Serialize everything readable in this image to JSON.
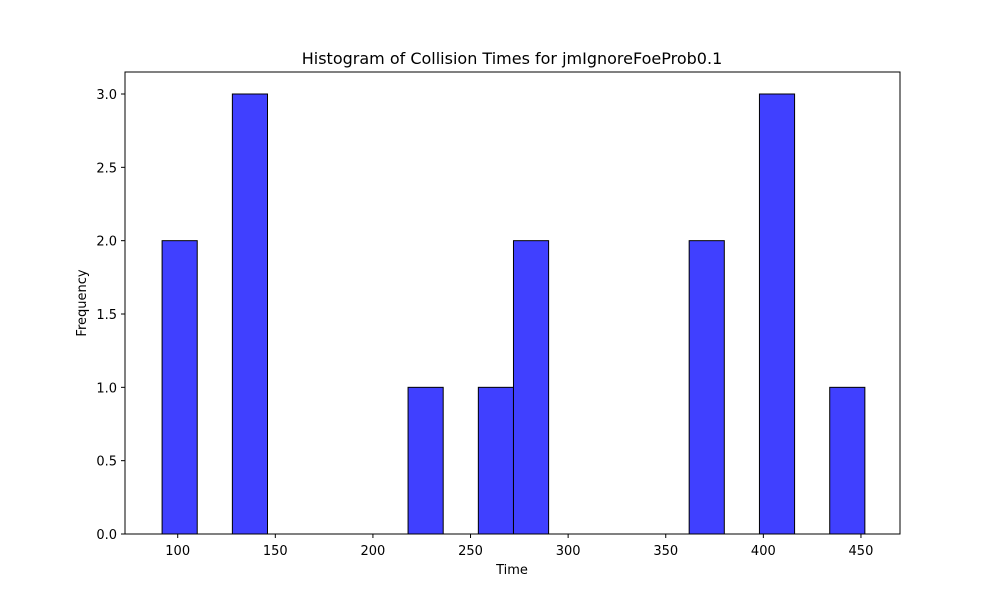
{
  "chart_data": {
    "type": "bar",
    "title": "Histogram of Collision Times for jmIgnoreFoeProb0.1",
    "xlabel": "Time",
    "ylabel": "Frequency",
    "xlim": [
      73,
      470
    ],
    "ylim": [
      0,
      3.15
    ],
    "xticks": [
      100,
      150,
      200,
      250,
      300,
      350,
      400,
      450
    ],
    "xtick_labels": [
      "100",
      "150",
      "200",
      "250",
      "300",
      "350",
      "400",
      "450"
    ],
    "yticks": [
      0.0,
      0.5,
      1.0,
      1.5,
      2.0,
      2.5,
      3.0
    ],
    "ytick_labels": [
      "0.0",
      "0.5",
      "1.0",
      "1.5",
      "2.0",
      "2.5",
      "3.0"
    ],
    "bins": [
      {
        "start": 92,
        "end": 110,
        "count": 2
      },
      {
        "start": 128,
        "end": 146,
        "count": 3
      },
      {
        "start": 218,
        "end": 236,
        "count": 1
      },
      {
        "start": 254,
        "end": 272,
        "count": 1
      },
      {
        "start": 272,
        "end": 290,
        "count": 2
      },
      {
        "start": 362,
        "end": 380,
        "count": 2
      },
      {
        "start": 398,
        "end": 416,
        "count": 3
      },
      {
        "start": 434,
        "end": 452,
        "count": 1
      }
    ],
    "bar_color": "#4040ff",
    "edge_color": "#000000",
    "grid": false,
    "legend": "none"
  }
}
